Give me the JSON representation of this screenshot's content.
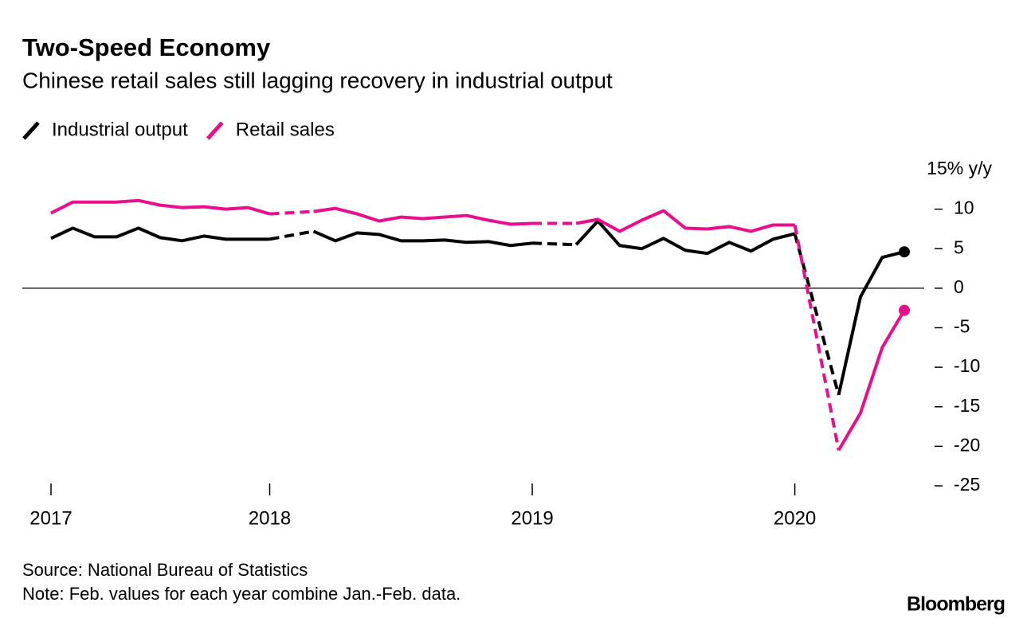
{
  "chart_data": {
    "type": "line",
    "title": "Two-Speed Economy",
    "subtitle": "Chinese retail sales still lagging recovery in industrial output",
    "x": [
      2017.167,
      2017.25,
      2017.333,
      2017.417,
      2017.5,
      2017.583,
      2017.667,
      2017.75,
      2017.833,
      2017.917,
      2018.0,
      2018.167,
      2018.25,
      2018.333,
      2018.417,
      2018.5,
      2018.583,
      2018.667,
      2018.75,
      2018.833,
      2018.917,
      2019.0,
      2019.167,
      2019.25,
      2019.333,
      2019.417,
      2019.5,
      2019.583,
      2019.667,
      2019.75,
      2019.833,
      2019.917,
      2020.0,
      2020.167,
      2020.25,
      2020.333,
      2020.417
    ],
    "series": [
      {
        "name": "Industrial output",
        "color": "#000000",
        "values": [
          6.3,
          7.6,
          6.5,
          6.5,
          7.6,
          6.4,
          6.0,
          6.6,
          6.2,
          6.2,
          6.2,
          7.2,
          6.0,
          7.0,
          6.8,
          6.0,
          6.0,
          6.1,
          5.8,
          5.9,
          5.4,
          5.7,
          5.5,
          8.5,
          5.4,
          5.0,
          6.3,
          4.8,
          4.4,
          5.8,
          4.7,
          6.2,
          6.9,
          -13.5,
          -1.1,
          3.9,
          4.6
        ]
      },
      {
        "name": "Retail sales",
        "color": "#ea0d8c",
        "values": [
          9.5,
          10.9,
          10.9,
          10.9,
          11.1,
          10.5,
          10.2,
          10.3,
          10.0,
          10.2,
          9.4,
          9.7,
          10.1,
          9.4,
          8.5,
          9.0,
          8.8,
          9.0,
          9.2,
          8.6,
          8.1,
          8.2,
          8.2,
          8.7,
          7.2,
          8.6,
          9.8,
          7.6,
          7.5,
          7.8,
          7.2,
          8.0,
          8.0,
          -20.5,
          -15.8,
          -7.5,
          -2.8
        ]
      }
    ],
    "xlim": [
      2017.167,
      2020.417
    ],
    "xticks": [
      {
        "value": 2017.167,
        "label": "2017"
      },
      2018,
      2019,
      2020
    ],
    "ylim": [
      -25,
      15
    ],
    "yticks": [
      -25,
      -20,
      -15,
      -10,
      -5,
      0,
      5,
      10,
      {
        "value": 15,
        "label": "15% y/y"
      }
    ],
    "zero_line": true,
    "end_markers": true,
    "legend": "top-left",
    "source": "Source: National Bureau of Statistics",
    "note": "Note: Feb. values for each year combine Jan.-Feb. data.",
    "brand": "Bloomberg"
  }
}
